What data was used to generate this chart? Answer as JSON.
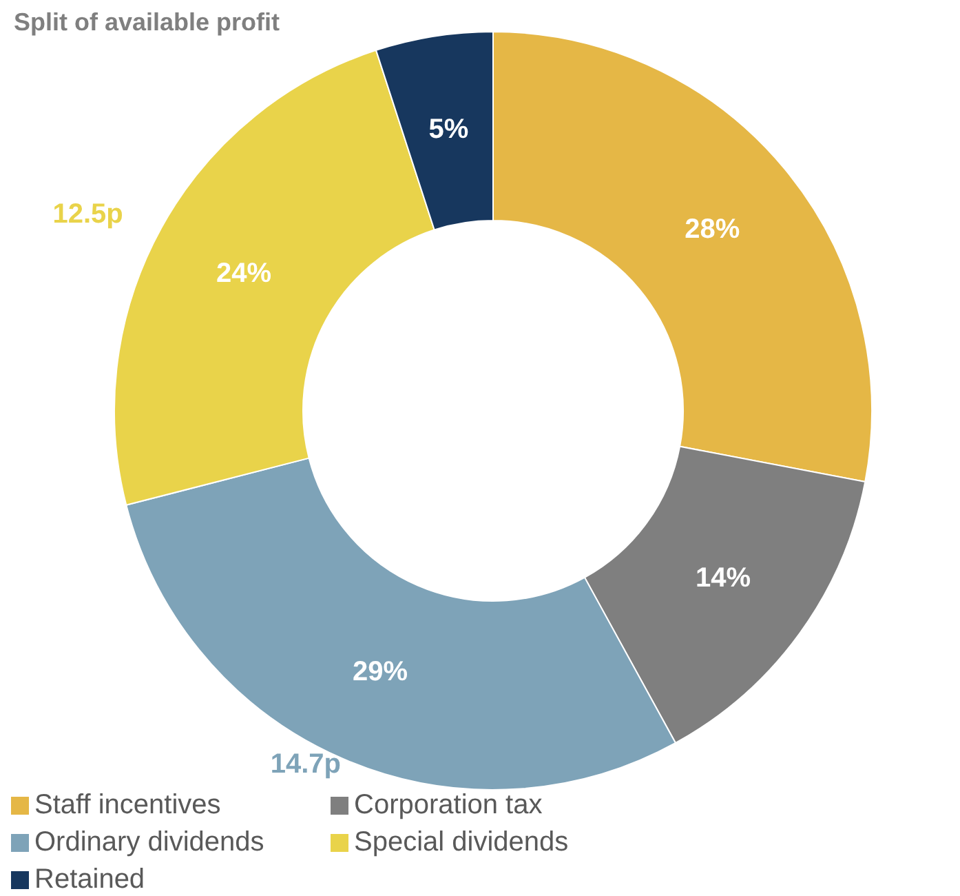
{
  "chart_data": {
    "type": "donut",
    "title": "Split of available profit",
    "categories": [
      "Staff incentives",
      "Corporation tax",
      "Ordinary dividends",
      "Special dividends",
      "Retained"
    ],
    "values": [
      28,
      14,
      29,
      24,
      5
    ],
    "value_labels": [
      "28%",
      "14%",
      "29%",
      "24%",
      "5%"
    ],
    "colors": [
      "#e5b746",
      "#7f7f7f",
      "#7ea3b8",
      "#e9d34a",
      "#17375e"
    ],
    "annotations": [
      {
        "text": "12.5p",
        "x": "Special dividends"
      },
      {
        "text": "14.7p",
        "x": "Ordinary dividends"
      }
    ],
    "legend": "bottom"
  }
}
